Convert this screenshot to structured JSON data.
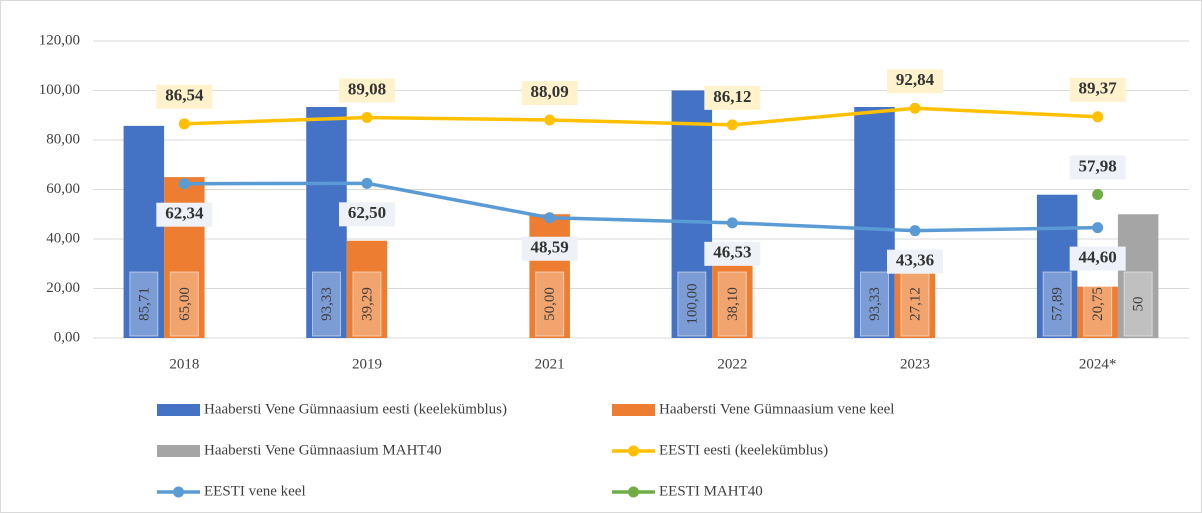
{
  "chart_data": {
    "type": "bar",
    "categories": [
      "2018",
      "2019",
      "2021",
      "2022",
      "2023",
      "2024*"
    ],
    "ylim": [
      0,
      120
    ],
    "yticks": [
      {
        "value": 0,
        "label": "0,00"
      },
      {
        "value": 20,
        "label": "20,00"
      },
      {
        "value": 40,
        "label": "40,00"
      },
      {
        "value": 60,
        "label": "60,00"
      },
      {
        "value": 80,
        "label": "80,00"
      },
      {
        "value": 100,
        "label": "100,00"
      },
      {
        "value": 120,
        "label": "120,00"
      }
    ],
    "grid": true,
    "legend": "bottom",
    "series": [
      {
        "name": "Haabersti Vene Gümnaasium eesti (keelekümblus)",
        "type": "bar",
        "color": "#4472c4",
        "values": [
          85.71,
          93.33,
          null,
          100.0,
          93.33,
          57.89
        ],
        "value_labels": [
          "85,71",
          "93,33",
          null,
          "100,00",
          "93,33",
          "57,89"
        ]
      },
      {
        "name": "Haabersti Vene Gümnaasium vene keel",
        "type": "bar",
        "color": "#ed7d31",
        "values": [
          65.0,
          39.29,
          50.0,
          38.1,
          27.12,
          20.75
        ],
        "value_labels": [
          "65,00",
          "39,29",
          "50,00",
          "38,10",
          "27,12",
          "20,75"
        ]
      },
      {
        "name": "Haabersti Vene Gümnaasium MAHT40",
        "type": "bar",
        "color": "#a5a5a5",
        "values": [
          null,
          null,
          null,
          null,
          null,
          50
        ],
        "value_labels": [
          null,
          null,
          null,
          null,
          null,
          "50"
        ]
      },
      {
        "name": "EESTI eesti (keelekümblus)",
        "type": "line",
        "color": "#ffc000",
        "values": [
          86.54,
          89.08,
          88.09,
          86.12,
          92.84,
          89.37
        ],
        "value_labels": [
          "86,54",
          "89,08",
          "88,09",
          "86,12",
          "92,84",
          "89,37"
        ]
      },
      {
        "name": "EESTI vene keel",
        "type": "line",
        "color": "#5b9bd5",
        "values": [
          62.34,
          62.5,
          48.59,
          46.53,
          43.36,
          44.6
        ],
        "value_labels": [
          "62,34",
          "62,50",
          "48,59",
          "46,53",
          "43,36",
          "44,60"
        ]
      },
      {
        "name": "EESTI MAHT40",
        "type": "line",
        "color": "#70ad47",
        "values": [
          null,
          null,
          null,
          null,
          null,
          57.98
        ],
        "value_labels": [
          null,
          null,
          null,
          null,
          null,
          "57,98"
        ]
      }
    ]
  }
}
